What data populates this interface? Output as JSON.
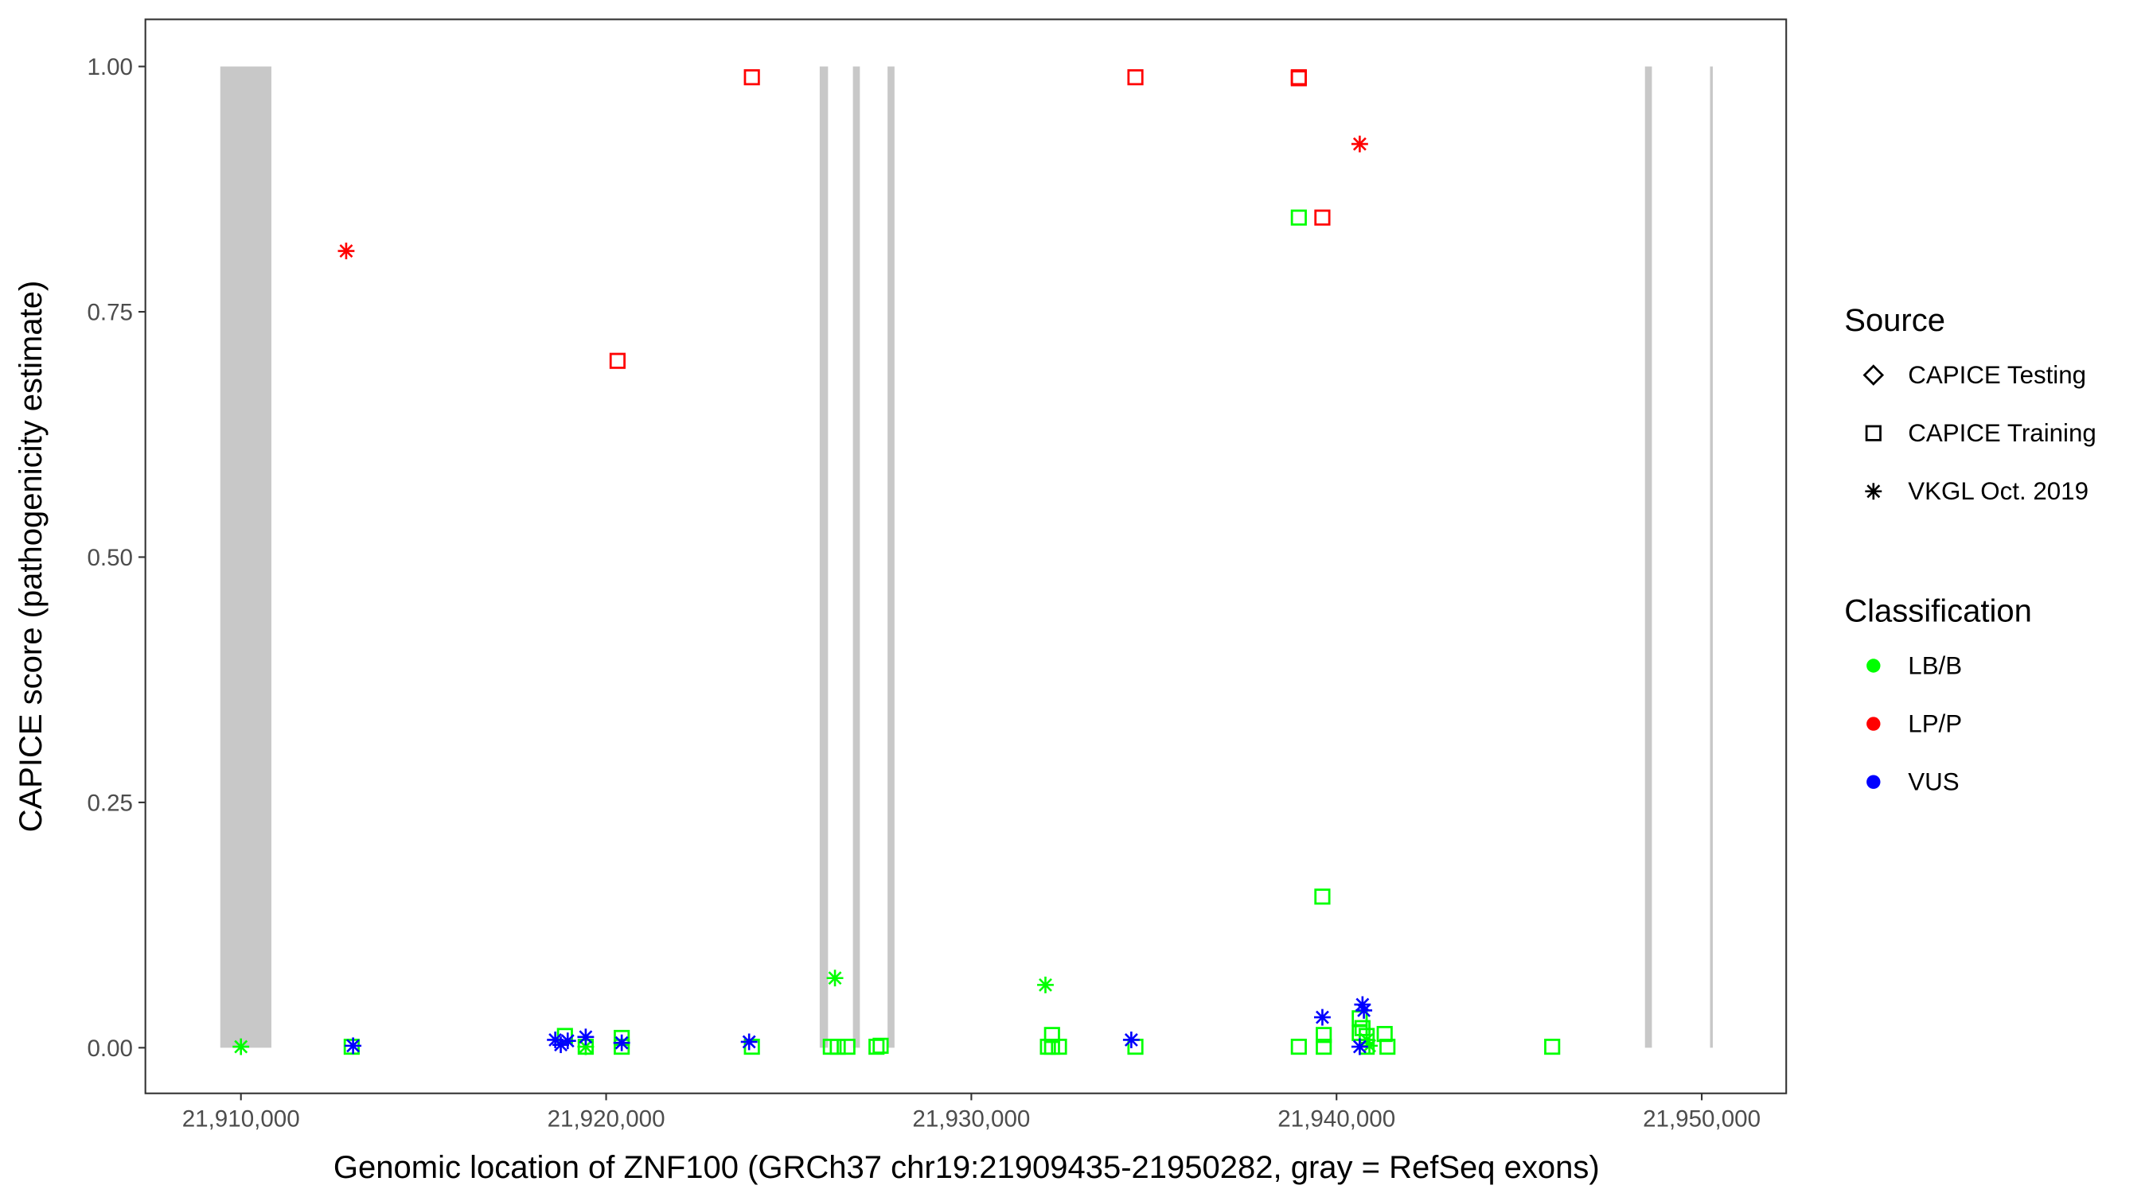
{
  "chart_data": {
    "type": "scatter",
    "x_label": "Genomic location of ZNF100 (GRCh37 chr19:21909435-21950282, gray = RefSeq exons)",
    "y_label": "CAPICE score (pathogenicity estimate)",
    "xlim": [
      21907384,
      21952313
    ],
    "ylim": [
      -0.0465,
      1.048
    ],
    "xticks": [
      {
        "value": 21910000,
        "label": "21,910,000"
      },
      {
        "value": 21920000,
        "label": "21,920,000"
      },
      {
        "value": 21930000,
        "label": "21,930,000"
      },
      {
        "value": 21940000,
        "label": "21,940,000"
      },
      {
        "value": 21950000,
        "label": "21,950,000"
      }
    ],
    "yticks": [
      {
        "value": 0,
        "label": "0.00"
      },
      {
        "value": 0.25,
        "label": "0.25"
      },
      {
        "value": 0.5,
        "label": "0.50"
      },
      {
        "value": 0.75,
        "label": "0.75"
      },
      {
        "value": 1,
        "label": "1.00"
      }
    ],
    "exon_color": "#c8c8c8",
    "exon_span": [
      0,
      1
    ],
    "exons": [
      [
        21909435,
        21910834
      ],
      [
        21925848,
        21926076
      ],
      [
        21926758,
        21926948
      ],
      [
        21927706,
        21927896
      ],
      [
        21948445,
        21948635
      ],
      [
        21950227,
        21950282
      ]
    ],
    "legend_source": {
      "title": "Source",
      "entries": [
        {
          "label": "CAPICE Testing",
          "shape": "diamond"
        },
        {
          "label": "CAPICE Training",
          "shape": "square"
        },
        {
          "label": "VKGL Oct. 2019",
          "shape": "asterisk"
        }
      ]
    },
    "legend_class": {
      "title": "Classification",
      "entries": [
        {
          "label": "LB/B",
          "color": "#00ff00"
        },
        {
          "label": "LP/P",
          "color": "#ff0000"
        },
        {
          "label": "VUS",
          "color": "#0000ff"
        }
      ]
    },
    "series": [
      {
        "shape": "square",
        "color": "#00ff00",
        "x": [
          21938967,
          21939612,
          21913033,
          21918872,
          21919441,
          21920427,
          21920427,
          21923991,
          21926152,
          21926342,
          21926607,
          21927403,
          21927517,
          21932097,
          21932210,
          21932210,
          21932400,
          21934493,
          21938967,
          21939650,
          21939650,
          21940635,
          21940635,
          21940711,
          21940825,
          21940825,
          21941318,
          21941394,
          21945905
        ],
        "y": [
          0.846,
          0.154,
          0.001,
          0.012,
          0.001,
          0.01,
          0.001,
          0.001,
          0.001,
          0.001,
          0.001,
          0.001,
          0.002,
          0.001,
          0.013,
          0.001,
          0.001,
          0.001,
          0.001,
          0.013,
          0.001,
          0.03,
          0.015,
          0.02,
          0.012,
          0.001,
          0.014,
          0.001,
          0.001
        ]
      },
      {
        "shape": "square",
        "color": "#ff0000",
        "x": [
          21923991,
          21934493,
          21938967,
          21938967,
          21939612,
          21920313
        ],
        "y": [
          0.989,
          0.989,
          0.989,
          0.988,
          0.846,
          0.7
        ]
      },
      {
        "shape": "asterisk",
        "color": "#00ff00",
        "x": [
          21910000,
          21926266,
          21932029,
          21919441,
          21940825,
          21940900
        ],
        "y": [
          0.001,
          0.071,
          0.064,
          0.001,
          0.008,
          0.002
        ]
      },
      {
        "shape": "asterisk",
        "color": "#ff0000",
        "x": [
          21912882,
          21940635
        ],
        "y": [
          0.812,
          0.921
        ]
      },
      {
        "shape": "asterisk",
        "color": "#0000ff",
        "x": [
          21913071,
          21918607,
          21918758,
          21918948,
          21919441,
          21920427,
          21923915,
          21934380,
          21939612,
          21940711,
          21940749,
          21940635
        ],
        "y": [
          0.002,
          0.008,
          0.003,
          0.007,
          0.011,
          0.005,
          0.006,
          0.008,
          0.031,
          0.044,
          0.038,
          0.001
        ]
      }
    ]
  }
}
